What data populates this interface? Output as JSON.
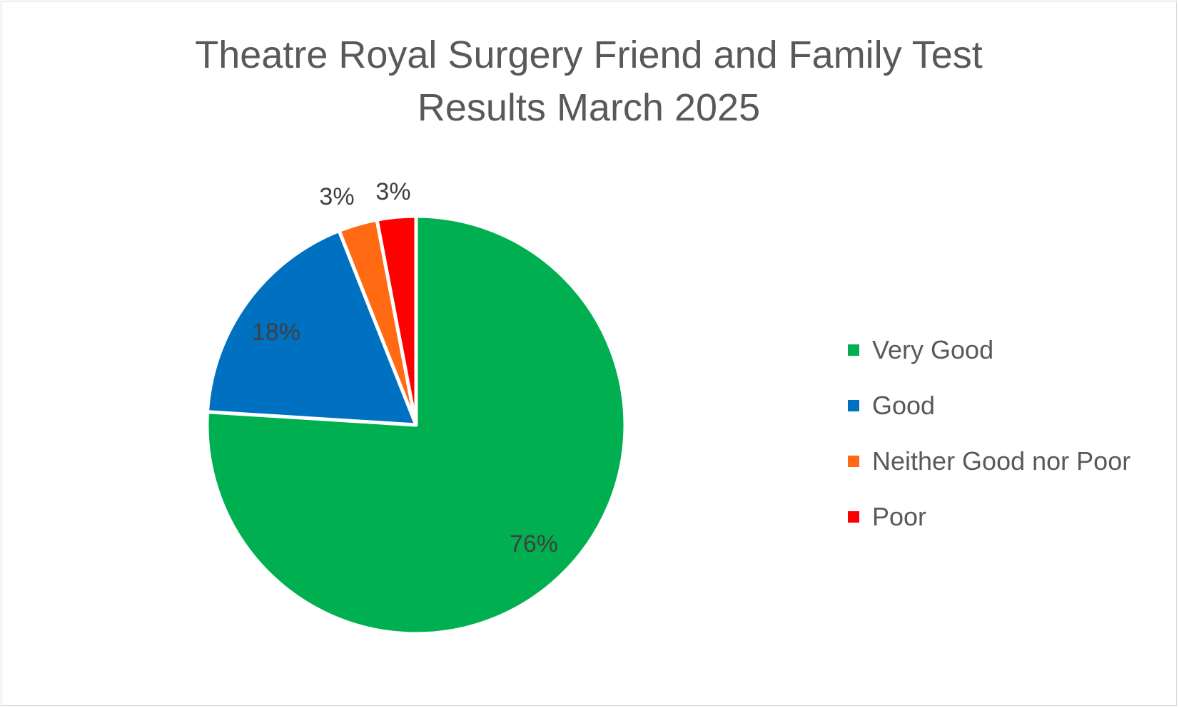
{
  "chart_data": {
    "type": "pie",
    "title": "Theatre Royal Surgery Friend and Family Test Results March 2025",
    "title_lines": [
      "Theatre Royal Surgery Friend and Family Test",
      "Results March 2025"
    ],
    "categories": [
      "Very Good",
      "Good",
      "Neither Good nor Poor",
      "Poor"
    ],
    "values": [
      76,
      18,
      3,
      3
    ],
    "data_labels": [
      "76%",
      "18%",
      "3%",
      "3%"
    ],
    "colors": [
      "#00b050",
      "#0070c0",
      "#ff6a13",
      "#ff0000"
    ],
    "legend_position": "right"
  }
}
